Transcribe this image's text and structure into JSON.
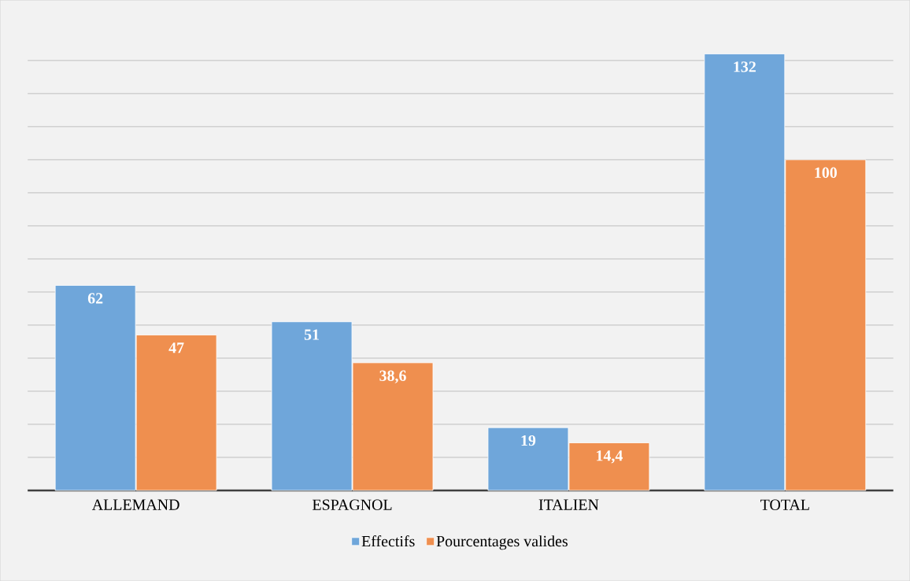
{
  "chart_data": {
    "type": "bar",
    "categories": [
      "ALLEMAND",
      "ESPAGNOL",
      "ITALIEN",
      "TOTAL"
    ],
    "series": [
      {
        "name": "Effectifs",
        "color": "#6fa6da",
        "values": [
          62,
          51,
          19,
          132
        ],
        "value_labels": [
          "62",
          "51",
          "19",
          "132"
        ]
      },
      {
        "name": "Pourcentages valides",
        "color": "#ef8f4f",
        "values": [
          47,
          38.6,
          14.4,
          100
        ],
        "value_labels": [
          "47",
          "38,6",
          "14,4",
          "100"
        ]
      }
    ],
    "grid": "y",
    "legend": "bottom",
    "tick_labels": "x"
  }
}
